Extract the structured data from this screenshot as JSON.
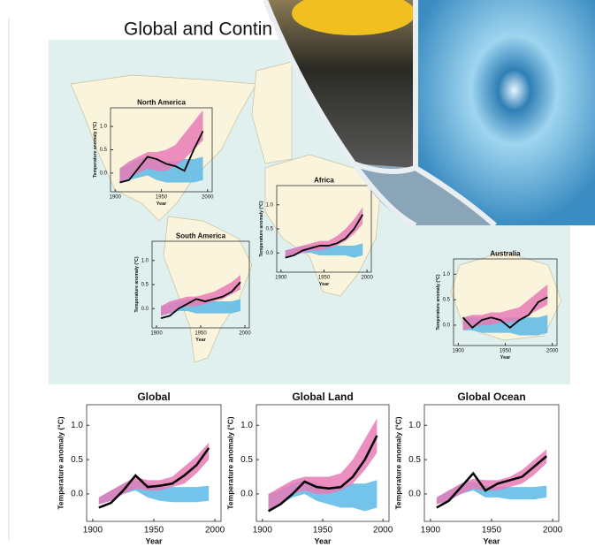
{
  "page": {
    "title": "Global and Contin"
  },
  "chart_data": [
    {
      "type": "band-line",
      "title": "Global",
      "xlabel": "Year",
      "ylabel": "Temperature anomaly (°C)",
      "x": [
        1905,
        1915,
        1925,
        1935,
        1945,
        1955,
        1965,
        1975,
        1985,
        1995
      ],
      "xlim": [
        1895,
        2005
      ],
      "xticks": [
        1900,
        1950,
        2000
      ],
      "ylim": [
        -0.4,
        1.3
      ],
      "yticks": [
        {
          "value": 0,
          "label": "0.0"
        },
        {
          "value": 0.5,
          "label": "0.5"
        },
        {
          "value": 1,
          "label": "1.0"
        }
      ],
      "bands": [
        {
          "color": "#5bb8e6",
          "lower": [
            -0.15,
            -0.1,
            0,
            0.05,
            -0.05,
            -0.1,
            -0.12,
            -0.12,
            -0.12,
            -0.1
          ],
          "upper": [
            -0.05,
            0.05,
            0.15,
            0.2,
            0.15,
            0.1,
            0.1,
            0.1,
            0.1,
            0.12
          ]
        },
        {
          "color": "#e77bb6",
          "lower": [
            -0.15,
            -0.1,
            0,
            0.08,
            0.05,
            0.05,
            0.1,
            0.15,
            0.3,
            0.5
          ],
          "upper": [
            -0.05,
            0.05,
            0.15,
            0.25,
            0.2,
            0.2,
            0.25,
            0.4,
            0.55,
            0.75
          ]
        }
      ],
      "series": [
        {
          "color": "#000000",
          "values": [
            -0.2,
            -0.13,
            0.05,
            0.27,
            0.1,
            0.12,
            0.15,
            0.27,
            0.42,
            0.67
          ]
        }
      ]
    },
    {
      "type": "band-line",
      "title": "Global Land",
      "xlabel": "Year",
      "ylabel": "Temperature anomaly (°C)",
      "x": [
        1905,
        1915,
        1925,
        1935,
        1945,
        1955,
        1965,
        1975,
        1985,
        1995
      ],
      "xlim": [
        1895,
        2005
      ],
      "xticks": [
        1900,
        1950,
        2000
      ],
      "ylim": [
        -0.4,
        1.3
      ],
      "yticks": [
        {
          "value": 0,
          "label": "0.0"
        },
        {
          "value": 0.5,
          "label": "0.5"
        },
        {
          "value": 1,
          "label": "1.0"
        }
      ],
      "bands": [
        {
          "color": "#5bb8e6",
          "lower": [
            -0.25,
            -0.15,
            -0.05,
            0,
            -0.1,
            -0.15,
            -0.2,
            -0.2,
            -0.25,
            -0.2
          ],
          "upper": [
            0,
            0.05,
            0.15,
            0.2,
            0.15,
            0.1,
            0.1,
            0.15,
            0.15,
            0.2
          ]
        },
        {
          "color": "#e77bb6",
          "lower": [
            -0.25,
            -0.15,
            0,
            0.05,
            0,
            0,
            0.05,
            0.15,
            0.35,
            0.6
          ],
          "upper": [
            0,
            0.1,
            0.2,
            0.25,
            0.25,
            0.25,
            0.3,
            0.5,
            0.8,
            1.1
          ]
        }
      ],
      "series": [
        {
          "color": "#000000",
          "values": [
            -0.25,
            -0.15,
            0,
            0.18,
            0.1,
            0.08,
            0.1,
            0.25,
            0.5,
            0.85
          ]
        }
      ]
    },
    {
      "type": "band-line",
      "title": "Global Ocean",
      "xlabel": "Year",
      "ylabel": "Temperature anomaly (°C)",
      "x": [
        1905,
        1915,
        1925,
        1935,
        1945,
        1955,
        1965,
        1975,
        1985,
        1995
      ],
      "xlim": [
        1895,
        2005
      ],
      "xticks": [
        1900,
        1950,
        2000
      ],
      "ylim": [
        -0.4,
        1.3
      ],
      "yticks": [
        {
          "value": 0,
          "label": "0.0"
        },
        {
          "value": 0.5,
          "label": "0.5"
        },
        {
          "value": 1,
          "label": "1.0"
        }
      ],
      "bands": [
        {
          "color": "#5bb8e6",
          "lower": [
            -0.15,
            -0.1,
            0,
            0.05,
            -0.05,
            -0.05,
            -0.08,
            -0.08,
            -0.08,
            -0.05
          ],
          "upper": [
            -0.05,
            0.05,
            0.15,
            0.18,
            0.12,
            0.1,
            0.1,
            0.1,
            0.1,
            0.12
          ]
        },
        {
          "color": "#e77bb6",
          "lower": [
            -0.15,
            -0.1,
            0,
            0.08,
            0.05,
            0.05,
            0.1,
            0.15,
            0.28,
            0.45
          ],
          "upper": [
            -0.05,
            0.05,
            0.15,
            0.22,
            0.2,
            0.2,
            0.25,
            0.35,
            0.5,
            0.65
          ]
        }
      ],
      "series": [
        {
          "color": "#000000",
          "values": [
            -0.2,
            -0.1,
            0.1,
            0.3,
            0.05,
            0.15,
            0.2,
            0.25,
            0.4,
            0.55
          ]
        }
      ]
    },
    {
      "type": "band-line",
      "title": "North America",
      "xlabel": "Year",
      "ylabel": "Temperature anomaly (°C)",
      "x": [
        1905,
        1915,
        1925,
        1935,
        1945,
        1955,
        1965,
        1975,
        1985,
        1995
      ],
      "xlim": [
        1895,
        2005
      ],
      "xticks": [
        1900,
        1950,
        2000
      ],
      "ylim": [
        -0.4,
        1.4
      ],
      "yticks": [
        {
          "value": 0,
          "label": "0.0"
        },
        {
          "value": 0.5,
          "label": "0.5"
        },
        {
          "value": 1,
          "label": "1.0"
        }
      ],
      "bands": [
        {
          "color": "#5bb8e6",
          "lower": [
            -0.2,
            -0.15,
            -0.1,
            -0.05,
            -0.15,
            -0.2,
            -0.2,
            -0.2,
            -0.2,
            -0.15
          ],
          "upper": [
            0.1,
            0.2,
            0.3,
            0.35,
            0.3,
            0.25,
            0.25,
            0.3,
            0.3,
            0.35
          ]
        },
        {
          "color": "#e77bb6",
          "lower": [
            -0.2,
            -0.1,
            0,
            0.1,
            0.05,
            0.05,
            0.15,
            0.3,
            0.5,
            0.7
          ],
          "upper": [
            0.1,
            0.25,
            0.35,
            0.45,
            0.45,
            0.5,
            0.6,
            0.85,
            1.1,
            1.35
          ]
        }
      ],
      "series": [
        {
          "color": "#000000",
          "values": [
            -0.2,
            -0.15,
            0.1,
            0.35,
            0.3,
            0.2,
            0.15,
            0.05,
            0.5,
            0.9
          ]
        }
      ]
    },
    {
      "type": "band-line",
      "title": "South America",
      "xlabel": "Year",
      "ylabel": "Temperature anomaly (°C)",
      "x": [
        1905,
        1915,
        1925,
        1935,
        1945,
        1955,
        1965,
        1975,
        1985,
        1995
      ],
      "xlim": [
        1895,
        2005
      ],
      "xticks": [
        1900,
        1950,
        2000
      ],
      "ylim": [
        -0.4,
        1.4
      ],
      "yticks": [
        {
          "value": 0,
          "label": "0.0"
        },
        {
          "value": 0.5,
          "label": "0.5"
        },
        {
          "value": 1,
          "label": "1.0"
        }
      ],
      "bands": [
        {
          "color": "#5bb8e6",
          "lower": [
            -0.15,
            -0.1,
            -0.05,
            -0.05,
            -0.1,
            -0.1,
            -0.1,
            -0.1,
            -0.1,
            -0.05
          ],
          "upper": [
            0.05,
            0.1,
            0.15,
            0.2,
            0.15,
            0.15,
            0.15,
            0.15,
            0.15,
            0.2
          ]
        },
        {
          "color": "#e77bb6",
          "lower": [
            -0.15,
            -0.1,
            0,
            0.05,
            0.05,
            0.1,
            0.15,
            0.2,
            0.3,
            0.4
          ],
          "upper": [
            0.05,
            0.15,
            0.2,
            0.25,
            0.25,
            0.3,
            0.35,
            0.45,
            0.55,
            0.7
          ]
        }
      ],
      "series": [
        {
          "color": "#000000",
          "values": [
            -0.2,
            -0.15,
            0,
            0.1,
            0.2,
            0.15,
            0.2,
            0.25,
            0.35,
            0.55
          ]
        }
      ]
    },
    {
      "type": "band-line",
      "title": "Africa",
      "xlabel": "Year",
      "ylabel": "Temperature anomaly (°C)",
      "x": [
        1905,
        1915,
        1925,
        1935,
        1945,
        1955,
        1965,
        1975,
        1985,
        1995
      ],
      "xlim": [
        1895,
        2005
      ],
      "xticks": [
        1900,
        1950,
        2000
      ],
      "ylim": [
        -0.4,
        1.4
      ],
      "yticks": [
        {
          "value": 0,
          "label": "0.0"
        },
        {
          "value": 0.5,
          "label": "0.5"
        },
        {
          "value": 1,
          "label": "1.0"
        }
      ],
      "bands": [
        {
          "color": "#5bb8e6",
          "lower": [
            -0.1,
            -0.05,
            0,
            0,
            -0.05,
            -0.05,
            -0.05,
            -0.05,
            -0.1,
            -0.05
          ],
          "upper": [
            0.05,
            0.1,
            0.15,
            0.15,
            0.15,
            0.15,
            0.15,
            0.15,
            0.15,
            0.2
          ]
        },
        {
          "color": "#e77bb6",
          "lower": [
            -0.1,
            -0.05,
            0,
            0.05,
            0.05,
            0.1,
            0.15,
            0.25,
            0.4,
            0.6
          ],
          "upper": [
            0.05,
            0.1,
            0.15,
            0.2,
            0.25,
            0.25,
            0.35,
            0.5,
            0.7,
            0.95
          ]
        }
      ],
      "series": [
        {
          "color": "#000000",
          "values": [
            -0.1,
            -0.05,
            0.05,
            0.1,
            0.15,
            0.15,
            0.2,
            0.3,
            0.5,
            0.8
          ]
        }
      ]
    },
    {
      "type": "band-line",
      "title": "Australia",
      "xlabel": "Year",
      "ylabel": "Temperature anomaly (°C)",
      "x": [
        1905,
        1915,
        1925,
        1935,
        1945,
        1955,
        1965,
        1975,
        1985,
        1995
      ],
      "xlim": [
        1895,
        2005
      ],
      "xticks": [
        1900,
        1950,
        2000
      ],
      "ylim": [
        -0.4,
        1.3
      ],
      "yticks": [
        {
          "value": 0,
          "label": "0.0"
        },
        {
          "value": 0.5,
          "label": "0.5"
        },
        {
          "value": 1,
          "label": "1.0"
        }
      ],
      "bands": [
        {
          "color": "#5bb8e6",
          "lower": [
            -0.1,
            -0.1,
            -0.15,
            -0.15,
            -0.15,
            -0.15,
            -0.2,
            -0.2,
            -0.2,
            -0.15
          ],
          "upper": [
            0.15,
            0.15,
            0.15,
            0.15,
            0.15,
            0.15,
            0.15,
            0.15,
            0.15,
            0.2
          ]
        },
        {
          "color": "#e77bb6",
          "lower": [
            -0.1,
            -0.05,
            0,
            0,
            0.05,
            0.05,
            0.1,
            0.2,
            0.3,
            0.4
          ],
          "upper": [
            0.15,
            0.2,
            0.2,
            0.25,
            0.25,
            0.3,
            0.35,
            0.5,
            0.65,
            0.8
          ]
        }
      ],
      "series": [
        {
          "color": "#000000",
          "values": [
            0.15,
            -0.05,
            0.1,
            0.15,
            0.1,
            -0.05,
            0.1,
            0.2,
            0.45,
            0.55
          ]
        }
      ]
    }
  ]
}
